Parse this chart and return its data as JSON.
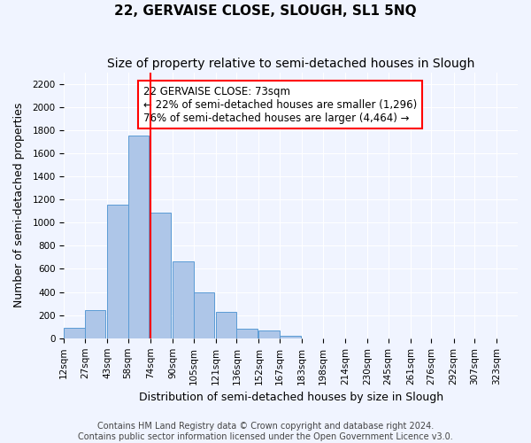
{
  "title": "22, GERVAISE CLOSE, SLOUGH, SL1 5NQ",
  "subtitle": "Size of property relative to semi-detached houses in Slough",
  "xlabel": "Distribution of semi-detached houses by size in Slough",
  "ylabel": "Number of semi-detached properties",
  "bin_labels": [
    "12sqm",
    "27sqm",
    "43sqm",
    "58sqm",
    "74sqm",
    "90sqm",
    "105sqm",
    "121sqm",
    "136sqm",
    "152sqm",
    "167sqm",
    "183sqm",
    "198sqm",
    "214sqm",
    "230sqm",
    "245sqm",
    "261sqm",
    "276sqm",
    "292sqm",
    "307sqm",
    "323sqm"
  ],
  "bin_edges": [
    12,
    27,
    43,
    58,
    74,
    90,
    105,
    121,
    136,
    152,
    167,
    183,
    198,
    214,
    230,
    245,
    261,
    276,
    292,
    307,
    323
  ],
  "bar_heights": [
    90,
    240,
    1155,
    1750,
    1090,
    665,
    400,
    225,
    80,
    65,
    20,
    0,
    0,
    0,
    0,
    0,
    0,
    0,
    0,
    0
  ],
  "bar_color": "#aec6e8",
  "bar_edge_color": "#5b9bd5",
  "property_size": 73,
  "vline_x": 74,
  "vline_color": "red",
  "annotation_title": "22 GERVAISE CLOSE: 73sqm",
  "annotation_line1": "← 22% of semi-detached houses are smaller (1,296)",
  "annotation_line2": "76% of semi-detached houses are larger (4,464) →",
  "annotation_box_color": "#ffffff",
  "annotation_box_edge": "red",
  "ylim": [
    0,
    2300
  ],
  "yticks": [
    0,
    200,
    400,
    600,
    800,
    1000,
    1200,
    1400,
    1600,
    1800,
    2000,
    2200
  ],
  "footer_line1": "Contains HM Land Registry data © Crown copyright and database right 2024.",
  "footer_line2": "Contains public sector information licensed under the Open Government Licence v3.0.",
  "bg_color": "#f0f4ff",
  "grid_color": "#ffffff",
  "title_fontsize": 11,
  "subtitle_fontsize": 10,
  "axis_label_fontsize": 9,
  "tick_fontsize": 7.5,
  "footer_fontsize": 7
}
